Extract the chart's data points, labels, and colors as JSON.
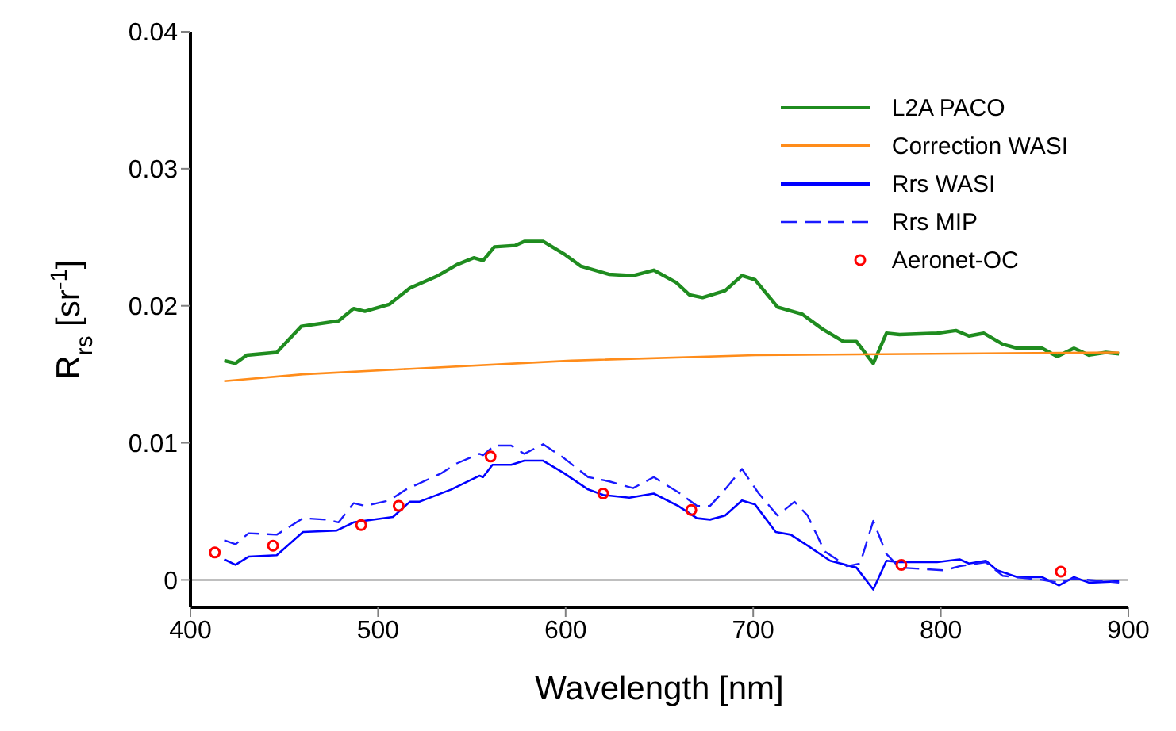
{
  "chart_data": {
    "type": "line",
    "xlabel": "Wavelength [nm]",
    "ylabel": "R$_{rs}$ [sr$^{-1}$]",
    "xlim": [
      400,
      900
    ],
    "xticks": [
      400,
      500,
      600,
      700,
      800,
      900
    ],
    "ylim": [
      -0.002,
      0.04
    ],
    "yticks": [
      0,
      0.01,
      0.02,
      0.03,
      0.04
    ],
    "grid": false,
    "legend": "top right",
    "ref_lines": [
      {
        "axis": "y",
        "value": 0,
        "color": "#808080"
      }
    ],
    "series": [
      {
        "name": "L2A PACO",
        "color": "#1f8c1f",
        "line_style": "solid",
        "marker": "none",
        "x": [
          418,
          424,
          430,
          446,
          459,
          479,
          487,
          493,
          506,
          517,
          532,
          542,
          551,
          556,
          562,
          573,
          578,
          588,
          599,
          608,
          623,
          636,
          647,
          659,
          666,
          673,
          685,
          694,
          701,
          713,
          726,
          737,
          748,
          755,
          764,
          771,
          778,
          798,
          808,
          815,
          823,
          833,
          841,
          854,
          862,
          871,
          879,
          888,
          895
        ],
        "values": [
          0.016,
          0.0158,
          0.0164,
          0.0166,
          0.0185,
          0.0189,
          0.0198,
          0.0196,
          0.0201,
          0.0213,
          0.0222,
          0.023,
          0.0235,
          0.0233,
          0.0243,
          0.0244,
          0.0247,
          0.0247,
          0.0238,
          0.0229,
          0.0223,
          0.0222,
          0.0226,
          0.0217,
          0.0208,
          0.0206,
          0.0211,
          0.0222,
          0.0219,
          0.0199,
          0.0194,
          0.0183,
          0.0174,
          0.0174,
          0.0158,
          0.018,
          0.0179,
          0.018,
          0.0182,
          0.0178,
          0.018,
          0.0172,
          0.0169,
          0.0169,
          0.0163,
          0.0169,
          0.0164,
          0.0166,
          0.0165
        ]
      },
      {
        "name": "Correction WASI",
        "color": "#ff8c1a",
        "line_style": "solid",
        "marker": "none",
        "x": [
          418,
          460,
          517,
          603,
          701,
          895
        ],
        "values": [
          0.0145,
          0.015,
          0.0154,
          0.016,
          0.0164,
          0.0166
        ]
      },
      {
        "name": "Rrs WASI",
        "color": "#0000ff",
        "line_style": "solid",
        "marker": "none",
        "x": [
          418,
          424,
          431,
          446,
          460,
          478,
          487,
          508,
          517,
          522,
          539,
          554,
          556,
          561,
          571,
          578,
          588,
          599,
          612,
          620,
          634,
          647,
          660,
          670,
          677,
          685,
          694,
          701,
          712,
          720,
          729,
          741,
          755,
          764,
          771,
          778,
          798,
          810,
          815,
          824,
          830,
          841,
          854,
          863,
          871,
          879,
          895
        ],
        "values": [
          0.0015,
          0.0011,
          0.0017,
          0.0018,
          0.0035,
          0.0036,
          0.0042,
          0.0046,
          0.0057,
          0.0057,
          0.0066,
          0.0076,
          0.0075,
          0.0084,
          0.0084,
          0.0087,
          0.0087,
          0.0078,
          0.0066,
          0.0062,
          0.006,
          0.0063,
          0.0054,
          0.0045,
          0.0044,
          0.0047,
          0.0058,
          0.0055,
          0.0035,
          0.0033,
          0.0025,
          0.0014,
          0.0009,
          -0.0007,
          0.0014,
          0.0013,
          0.0013,
          0.0015,
          0.0012,
          0.0014,
          0.0007,
          0.0002,
          0.0002,
          -0.0004,
          0.0002,
          -0.0002,
          -0.0001
        ]
      },
      {
        "name": "Rrs MIP",
        "color": "#1a1aff",
        "line_style": "dashed",
        "marker": "none",
        "x": [
          418,
          424,
          431,
          446,
          460,
          472,
          479,
          487,
          493,
          506,
          515,
          534,
          542,
          554,
          556,
          562,
          571,
          578,
          588,
          599,
          612,
          623,
          636,
          647,
          660,
          670,
          677,
          685,
          694,
          703,
          713,
          722,
          729,
          738,
          750,
          757,
          764,
          771,
          778,
          802,
          810,
          824,
          833,
          854,
          863,
          871,
          895
        ],
        "values": [
          0.0029,
          0.0026,
          0.0034,
          0.0033,
          0.0045,
          0.0044,
          0.0042,
          0.0056,
          0.0054,
          0.0058,
          0.0066,
          0.0078,
          0.0085,
          0.0092,
          0.0091,
          0.0098,
          0.0098,
          0.0092,
          0.0099,
          0.0089,
          0.0075,
          0.0072,
          0.0067,
          0.0075,
          0.0064,
          0.0054,
          0.0054,
          0.0066,
          0.0081,
          0.0063,
          0.0047,
          0.0057,
          0.0047,
          0.0021,
          0.001,
          0.0012,
          0.0043,
          0.0019,
          0.0009,
          0.0007,
          0.001,
          0.0013,
          0.0003,
          0,
          -0.0002,
          0.0001,
          -0.0002
        ]
      },
      {
        "name": "Aeronet-OC",
        "type": "scatter",
        "color": "#ff0000",
        "marker": "circle",
        "x": [
          413,
          444,
          491,
          511,
          560,
          620,
          667,
          779,
          864
        ],
        "values": [
          0.002,
          0.0025,
          0.004,
          0.0054,
          0.009,
          0.0063,
          0.0051,
          0.0011,
          0.0006
        ]
      }
    ]
  }
}
